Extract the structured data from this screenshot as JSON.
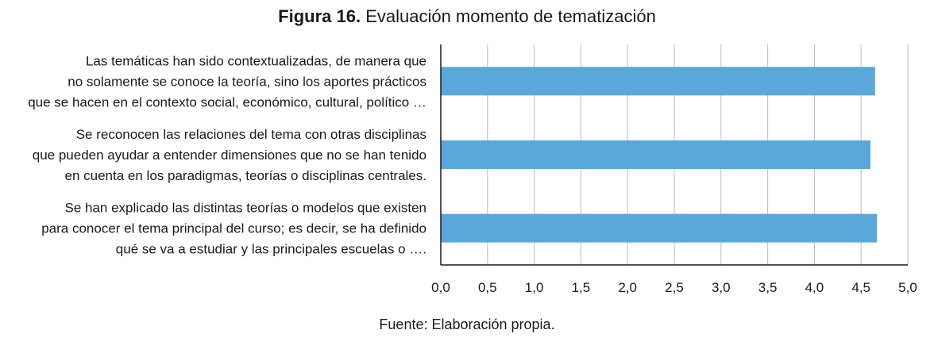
{
  "figure": {
    "label": "Figura 16.",
    "title": "Evaluación momento de tematización",
    "source": "Fuente: Elaboración propia."
  },
  "chart_data": {
    "type": "bar",
    "orientation": "horizontal",
    "title": "Evaluación momento de tematización",
    "categories": [
      [
        "Las temáticas han sido contextualizadas, de manera que",
        "no solamente se conoce la teoría, sino los aportes prácticos",
        "que se hacen en el contexto social, económico, cultural, político …"
      ],
      [
        "Se reconocen las relaciones del tema con otras disciplinas",
        "que pueden ayudar a entender dimensiones que no se han tenido",
        "en cuenta en los paradigmas, teorías o disciplinas centrales."
      ],
      [
        "Se han explicado las distintas teorías o modelos que existen",
        "para conocer el tema principal del curso; es decir, se ha definido",
        "qué se va a estudiar y las principales escuelas o …."
      ]
    ],
    "values": [
      4.65,
      4.6,
      4.67
    ],
    "xlim": [
      0,
      5
    ],
    "xticks": [
      "0,0",
      "0,5",
      "1,0",
      "1,5",
      "2,0",
      "2,5",
      "3,0",
      "3,5",
      "4,0",
      "4,5",
      "5,0"
    ],
    "bar_color": "#5aa7db",
    "grid": "vertical",
    "legend": "none"
  }
}
